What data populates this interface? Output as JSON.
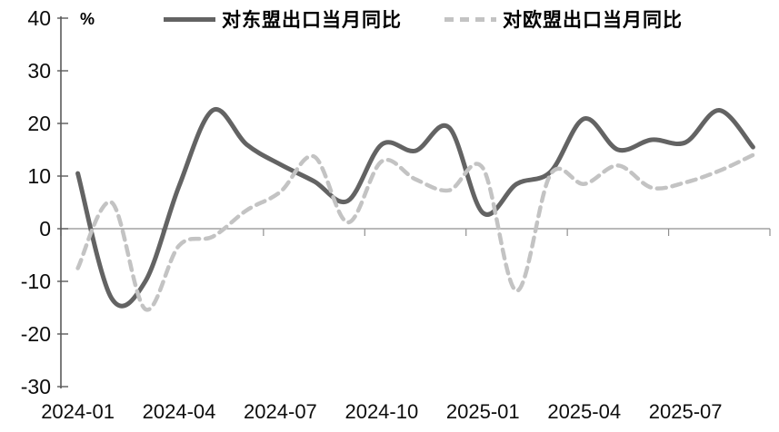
{
  "chart_data": {
    "type": "line",
    "title": "",
    "unit_label": "%",
    "xlabel": "",
    "ylabel": "%",
    "ylim": [
      -30,
      40
    ],
    "y_ticks": [
      40,
      30,
      20,
      10,
      0,
      -10,
      -20,
      -30
    ],
    "x": [
      "2024-01",
      "2024-02",
      "2024-03",
      "2024-04",
      "2024-05",
      "2024-06",
      "2024-07",
      "2024-08",
      "2024-09",
      "2024-10",
      "2024-11",
      "2024-12",
      "2025-01",
      "2025-02",
      "2025-03",
      "2025-04",
      "2025-05",
      "2025-06",
      "2025-07",
      "2025-08",
      "2025-09"
    ],
    "x_tick_labels": [
      "2024-01",
      "2024-04",
      "2024-07",
      "2024-10",
      "2025-01",
      "2025-04",
      "2025-07"
    ],
    "grid": "horizontal-zero-line-only",
    "legend_position": "top",
    "axis_color": "#5a5a5a",
    "zero_line_color": "#8f8f8f",
    "series": [
      {
        "name": "对东盟出口当月同比",
        "style": "solid",
        "color": "#636363",
        "values": [
          10.5,
          -13.2,
          -10.0,
          8.1,
          22.5,
          16.0,
          12.2,
          9.0,
          5.3,
          16.0,
          14.8,
          19.2,
          3.0,
          8.5,
          10.8,
          20.9,
          15.0,
          16.9,
          16.4,
          22.5,
          15.5
        ]
      },
      {
        "name": "对欧盟出口当月同比",
        "style": "dashed",
        "color": "#c3c3c3",
        "values": [
          -7.5,
          5.0,
          -15.3,
          -3.2,
          -1.5,
          3.5,
          7.0,
          13.7,
          1.2,
          12.8,
          9.4,
          7.3,
          11.5,
          -11.8,
          10.3,
          8.5,
          12.0,
          7.8,
          8.8,
          11.0,
          14.0
        ]
      }
    ]
  }
}
